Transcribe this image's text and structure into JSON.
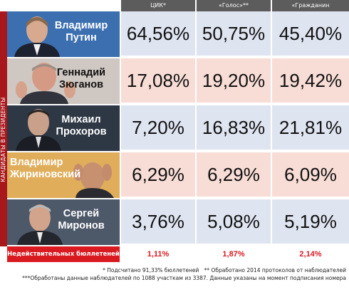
{
  "columns": [
    "ЦИК*",
    "«Голос»**",
    "«Гражданин наблюдатель»***"
  ],
  "side_label": "КАНДИДАТЫ В ПРЕЗИДЕНТЫ",
  "candidates": [
    {
      "name_line1": "Владимир",
      "name_line2": "Путин",
      "values": [
        "64,56%",
        "50,75%",
        "45,40%"
      ]
    },
    {
      "name_line1": "Геннадий",
      "name_line2": "Зюганов",
      "values": [
        "17,08%",
        "19,20%",
        "19,42%"
      ]
    },
    {
      "name_line1": "Михаил",
      "name_line2": "Прохоров",
      "values": [
        "7,20%",
        "16,83%",
        "21,81%"
      ]
    },
    {
      "name_line1": "Владимир",
      "name_line2": "Жириновский",
      "values": [
        "6,29%",
        "6,29%",
        "6,09%"
      ]
    },
    {
      "name_line1": "Сергей",
      "name_line2": "Миронов",
      "values": [
        "3,76%",
        "5,08%",
        "5,19%"
      ]
    }
  ],
  "invalid": {
    "label": "Недействительных бюллетеней",
    "values": [
      "1,11%",
      "1,87%",
      "2,14%"
    ]
  },
  "notes": {
    "line1": "* Подсчитано 91,33% бюллетеней   ** Обработано 2014 протоколов от наблюдателей",
    "line2": "***Обработаны данные наблюдателей по 1088 участкам из 3387. Данные указаны на момент подписания номера"
  },
  "colors": {
    "header_bg": "#5c5c5c",
    "accent_red": "#d91a21",
    "side_bar": "#a8171b",
    "row_blue": "#dfe4f1",
    "row_pink": "#f8ddd6",
    "row_gold": "#e8b95a"
  }
}
